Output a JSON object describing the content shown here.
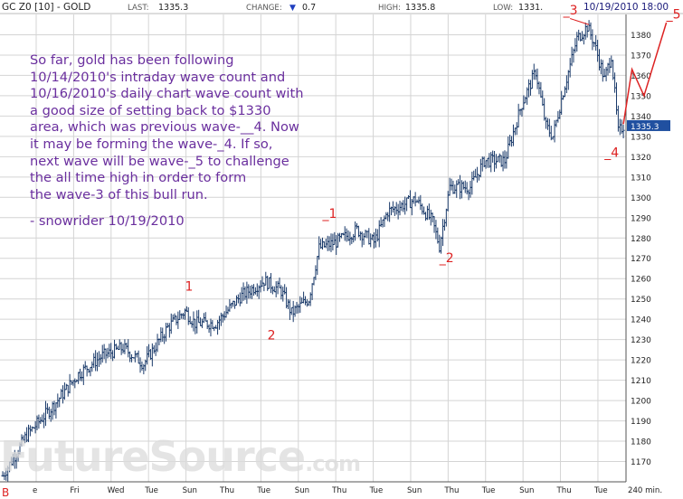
{
  "header": {
    "symbol": "GC Z0 [10] - GOLD",
    "last_label": "LAST:",
    "last_value": "1335.3",
    "change_label": "CHANGE:",
    "change_arrow": "▼",
    "change_value": "0.7",
    "high_label": "HIGH:",
    "high_value": "1335.8",
    "low_label": "LOW:",
    "low_value": "1331.",
    "datetime": "10/19/2010 18:00",
    "colors": {
      "background": "#ffffff",
      "text": "#222222",
      "arrow": "#1f3fbf",
      "datetime_text": "#1a1a7a"
    }
  },
  "commentary": {
    "text": "So far, gold has been following\n10/14/2010's intraday wave count and\n10/16/2010's daily chart wave count with\na good size of setting back to $1330\narea, which was previous wave-__4.  Now\nit may be forming the wave-_4.  If so,\nnext wave will be wave-_5 to challenge\nthe all time high in order to form\nthe wave-3 of this bull run.",
    "signature": "- snowrider  10/19/2010",
    "color": "#6a2f9e"
  },
  "watermark": {
    "text": "FutureSource",
    "suffix": ".com"
  },
  "corner_label": "B",
  "chart_data": {
    "type": "bar",
    "style": "ohlc",
    "bar_interval": "240 min.",
    "ylim": [
      1160,
      1390
    ],
    "ytick_step": 10,
    "y_axis_side": "right",
    "grid": true,
    "last_price_tag": "1335.3",
    "last_price_value": 1335.3,
    "x_tick_labels": [
      "e",
      "Fri",
      "Wed",
      "Tue",
      "Sun",
      "Thu",
      "Tue",
      "Sun",
      "Thu",
      "Tue",
      "Sun",
      "Thu",
      "Tue",
      "Sun",
      "Thu",
      "Tue",
      "240 min."
    ],
    "key_points": [
      {
        "bar": 0,
        "price": 1163
      },
      {
        "bar": 14,
        "price": 1183
      },
      {
        "bar": 29,
        "price": 1197
      },
      {
        "bar": 44,
        "price": 1213
      },
      {
        "bar": 58,
        "price": 1222
      },
      {
        "bar": 70,
        "price": 1226
      },
      {
        "bar": 82,
        "price": 1218
      },
      {
        "bar": 96,
        "price": 1236
      },
      {
        "bar": 106,
        "price": 1244
      },
      {
        "bar": 112,
        "price": 1238
      },
      {
        "bar": 124,
        "price": 1238
      },
      {
        "bar": 138,
        "price": 1251
      },
      {
        "bar": 152,
        "price": 1259
      },
      {
        "bar": 162,
        "price": 1254
      },
      {
        "bar": 168,
        "price": 1243
      },
      {
        "bar": 178,
        "price": 1250
      },
      {
        "bar": 184,
        "price": 1275
      },
      {
        "bar": 194,
        "price": 1278
      },
      {
        "bar": 206,
        "price": 1284
      },
      {
        "bar": 216,
        "price": 1278
      },
      {
        "bar": 224,
        "price": 1293
      },
      {
        "bar": 240,
        "price": 1299
      },
      {
        "bar": 250,
        "price": 1288
      },
      {
        "bar": 254,
        "price": 1276
      },
      {
        "bar": 260,
        "price": 1305
      },
      {
        "bar": 272,
        "price": 1305
      },
      {
        "bar": 280,
        "price": 1318
      },
      {
        "bar": 292,
        "price": 1318
      },
      {
        "bar": 302,
        "price": 1346
      },
      {
        "bar": 310,
        "price": 1362
      },
      {
        "bar": 316,
        "price": 1335
      },
      {
        "bar": 320,
        "price": 1330
      },
      {
        "bar": 326,
        "price": 1352
      },
      {
        "bar": 334,
        "price": 1378
      },
      {
        "bar": 340,
        "price": 1384
      },
      {
        "bar": 344,
        "price": 1376
      },
      {
        "bar": 350,
        "price": 1358
      },
      {
        "bar": 354,
        "price": 1370
      },
      {
        "bar": 358,
        "price": 1332
      },
      {
        "bar": 361,
        "price": 1335.3
      }
    ],
    "wave_labels": [
      {
        "text": "1",
        "bar": 106,
        "price": 1254,
        "color": "#dd2222"
      },
      {
        "text": "2",
        "bar": 154,
        "price": 1230,
        "color": "#dd2222"
      },
      {
        "text": "_1",
        "bar": 186,
        "price": 1290,
        "color": "#dd2222"
      },
      {
        "text": "_2",
        "bar": 254,
        "price": 1268,
        "color": "#dd2222"
      },
      {
        "text": "_3",
        "bar": 326,
        "price": 1390,
        "color": "#dd2222"
      },
      {
        "text": "_4",
        "bar": 350,
        "price": 1320,
        "color": "#dd2222"
      },
      {
        "text": "_5",
        "bar": 386,
        "price": 1388,
        "color": "#dd2222"
      }
    ],
    "projection_path": [
      {
        "bar": 361,
        "price": 1336
      },
      {
        "bar": 366,
        "price": 1363
      },
      {
        "bar": 373,
        "price": 1350
      },
      {
        "bar": 386,
        "price": 1386
      }
    ],
    "colors": {
      "bars": "#1a3a6a",
      "grid": "#d4d4d4",
      "annotation": "#dd2222",
      "projection": "#dd2222",
      "price_tag_bg": "#2050a0"
    }
  }
}
